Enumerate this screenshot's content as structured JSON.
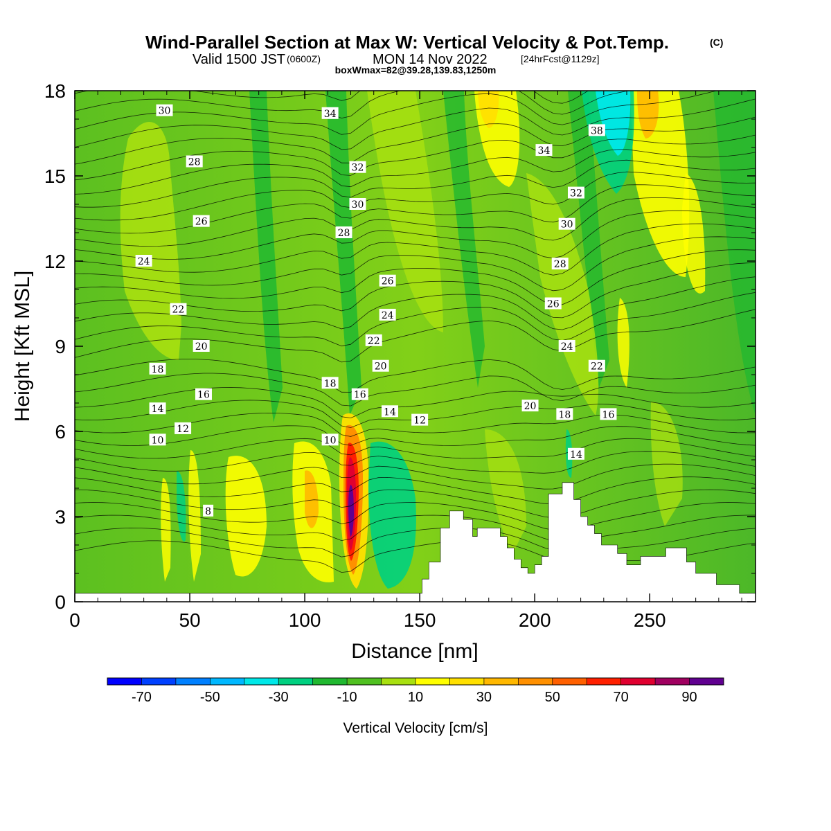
{
  "title": {
    "main": "Wind-Parallel Section at Max W: Vertical Velocity & Pot.Temp.",
    "copyright": "(C)",
    "valid_prefix": "Valid 1500 JST",
    "valid_utc": "(0600Z)",
    "valid_date": "MON 14 Nov 2022",
    "forecast": "[24hrFcst@1129z]",
    "box": "boxWmax=82@39.28,139.83,1250m"
  },
  "chart_data": {
    "type": "heatmap",
    "xlabel": "Distance [nm]",
    "ylabel": "Height [Kft MSL]",
    "xlim": [
      0,
      296
    ],
    "ylim": [
      0,
      18
    ],
    "x_ticks": [
      "0",
      "50",
      "100",
      "150",
      "200",
      "250"
    ],
    "y_ticks": [
      "0",
      "3",
      "6",
      "9",
      "12",
      "15",
      "18"
    ],
    "colorbar": {
      "label": "Vertical Velocity [cm/s]",
      "tick_labels": [
        "-70",
        "-50",
        "-30",
        "-10",
        "10",
        "30",
        "50",
        "70",
        "90"
      ],
      "bins": [
        {
          "from": -80,
          "to": -70,
          "color": "#0000ff"
        },
        {
          "from": -70,
          "to": -60,
          "color": "#0040ff"
        },
        {
          "from": -60,
          "to": -50,
          "color": "#0080ff"
        },
        {
          "from": -50,
          "to": -40,
          "color": "#00b8ff"
        },
        {
          "from": -40,
          "to": -30,
          "color": "#00e8e8"
        },
        {
          "from": -30,
          "to": -20,
          "color": "#00d080"
        },
        {
          "from": -20,
          "to": -10,
          "color": "#20b830"
        },
        {
          "from": -10,
          "to": 0,
          "color": "#50c020"
        },
        {
          "from": 0,
          "to": 10,
          "color": "#a8e010"
        },
        {
          "from": 10,
          "to": 20,
          "color": "#ffff00"
        },
        {
          "from": 20,
          "to": 30,
          "color": "#ffe000"
        },
        {
          "from": 30,
          "to": 40,
          "color": "#ffb800"
        },
        {
          "from": 40,
          "to": 50,
          "color": "#ff9000"
        },
        {
          "from": 50,
          "to": 60,
          "color": "#ff6000"
        },
        {
          "from": 60,
          "to": 70,
          "color": "#ff2000"
        },
        {
          "from": 70,
          "to": 80,
          "color": "#e00030"
        },
        {
          "from": 80,
          "to": 90,
          "color": "#a00060"
        },
        {
          "from": 90,
          "to": 100,
          "color": "#600090"
        }
      ]
    },
    "contour_labels": [
      {
        "text": "30",
        "x": 39,
        "y": 17.3
      },
      {
        "text": "28",
        "x": 52,
        "y": 15.5
      },
      {
        "text": "26",
        "x": 55,
        "y": 13.4
      },
      {
        "text": "24",
        "x": 30,
        "y": 12.0
      },
      {
        "text": "22",
        "x": 45,
        "y": 10.3
      },
      {
        "text": "20",
        "x": 55,
        "y": 9.0
      },
      {
        "text": "18",
        "x": 36,
        "y": 8.2
      },
      {
        "text": "16",
        "x": 56,
        "y": 7.3
      },
      {
        "text": "14",
        "x": 36,
        "y": 6.8
      },
      {
        "text": "12",
        "x": 47,
        "y": 6.1
      },
      {
        "text": "10",
        "x": 36,
        "y": 5.7
      },
      {
        "text": "8",
        "x": 58,
        "y": 3.2
      },
      {
        "text": "34",
        "x": 111,
        "y": 17.2
      },
      {
        "text": "32",
        "x": 123,
        "y": 15.3
      },
      {
        "text": "30",
        "x": 123,
        "y": 14.0
      },
      {
        "text": "28",
        "x": 117,
        "y": 13.0
      },
      {
        "text": "26",
        "x": 136,
        "y": 11.3
      },
      {
        "text": "24",
        "x": 136,
        "y": 10.1
      },
      {
        "text": "22",
        "x": 130,
        "y": 9.2
      },
      {
        "text": "20",
        "x": 133,
        "y": 8.3
      },
      {
        "text": "18",
        "x": 111,
        "y": 7.7
      },
      {
        "text": "16",
        "x": 124,
        "y": 7.3
      },
      {
        "text": "14",
        "x": 137,
        "y": 6.7
      },
      {
        "text": "12",
        "x": 150,
        "y": 6.4
      },
      {
        "text": "10",
        "x": 111,
        "y": 5.7
      },
      {
        "text": "34",
        "x": 204,
        "y": 15.9
      },
      {
        "text": "38",
        "x": 227,
        "y": 16.6
      },
      {
        "text": "32",
        "x": 218,
        "y": 14.4
      },
      {
        "text": "30",
        "x": 214,
        "y": 13.3
      },
      {
        "text": "28",
        "x": 211,
        "y": 11.9
      },
      {
        "text": "26",
        "x": 208,
        "y": 10.5
      },
      {
        "text": "24",
        "x": 214,
        "y": 9.0
      },
      {
        "text": "22",
        "x": 227,
        "y": 8.3
      },
      {
        "text": "20",
        "x": 198,
        "y": 6.9
      },
      {
        "text": "18",
        "x": 213,
        "y": 6.6
      },
      {
        "text": "16",
        "x": 232,
        "y": 6.6
      },
      {
        "text": "14",
        "x": 218,
        "y": 5.2
      }
    ],
    "terrain": [
      [
        0,
        0.3
      ],
      [
        151,
        0.3
      ],
      [
        151,
        0.8
      ],
      [
        154,
        0.8
      ],
      [
        154,
        1.4
      ],
      [
        159,
        1.4
      ],
      [
        159,
        2.6
      ],
      [
        163,
        2.6
      ],
      [
        163,
        3.2
      ],
      [
        169,
        3.2
      ],
      [
        169,
        2.9
      ],
      [
        173,
        2.9
      ],
      [
        173,
        2.3
      ],
      [
        175,
        2.3
      ],
      [
        175,
        2.6
      ],
      [
        185,
        2.6
      ],
      [
        185,
        2.3
      ],
      [
        188,
        2.3
      ],
      [
        188,
        1.9
      ],
      [
        191,
        1.9
      ],
      [
        191,
        1.5
      ],
      [
        194,
        1.5
      ],
      [
        194,
        1.2
      ],
      [
        197,
        1.2
      ],
      [
        197,
        1.0
      ],
      [
        200,
        1.0
      ],
      [
        200,
        1.3
      ],
      [
        203,
        1.3
      ],
      [
        203,
        1.6
      ],
      [
        206,
        1.6
      ],
      [
        206,
        3.8
      ],
      [
        212,
        3.8
      ],
      [
        212,
        4.2
      ],
      [
        217,
        4.2
      ],
      [
        217,
        3.6
      ],
      [
        220,
        3.6
      ],
      [
        220,
        3.0
      ],
      [
        223,
        3.0
      ],
      [
        223,
        2.7
      ],
      [
        226,
        2.7
      ],
      [
        226,
        2.4
      ],
      [
        229,
        2.4
      ],
      [
        229,
        2.0
      ],
      [
        236,
        2.0
      ],
      [
        236,
        1.7
      ],
      [
        240,
        1.7
      ],
      [
        240,
        1.3
      ],
      [
        246,
        1.3
      ],
      [
        246,
        1.6
      ],
      [
        257,
        1.6
      ],
      [
        257,
        1.9
      ],
      [
        266,
        1.9
      ],
      [
        266,
        1.4
      ],
      [
        270,
        1.4
      ],
      [
        270,
        1.0
      ],
      [
        279,
        1.0
      ],
      [
        279,
        0.6
      ],
      [
        289,
        0.6
      ],
      [
        289,
        0.3
      ],
      [
        296,
        0.3
      ],
      [
        296,
        0
      ],
      [
        0,
        0
      ]
    ]
  }
}
